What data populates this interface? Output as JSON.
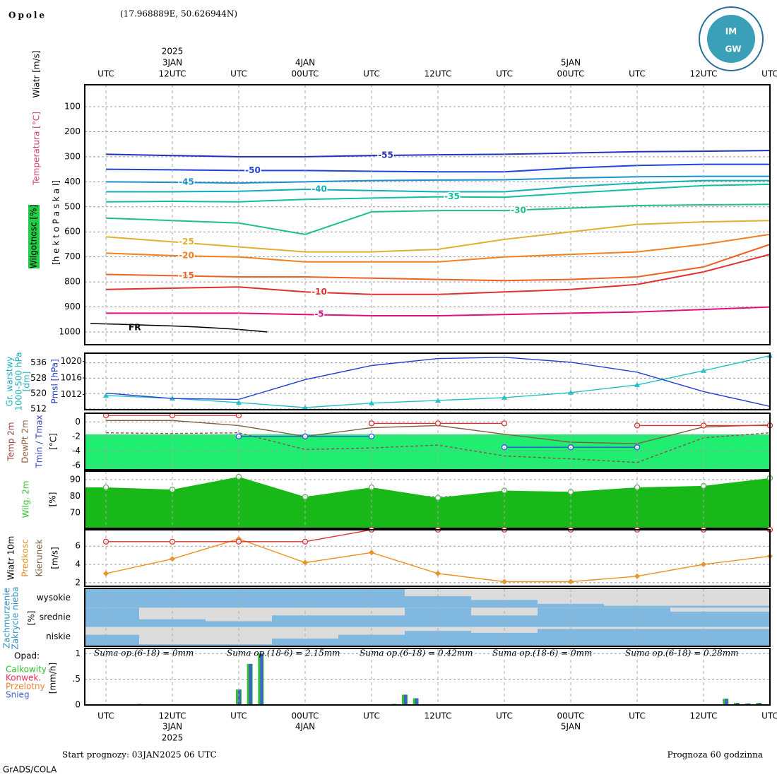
{
  "header": {
    "station": "Opole",
    "coords": "(17.968889E, 50.626944N)",
    "logo": [
      "IM",
      "GW"
    ]
  },
  "time_axis": {
    "categories": [
      "UTC",
      "12UTC",
      "UTC",
      "00UTC",
      "UTC",
      "12UTC",
      "UTC",
      "00UTC",
      "UTC",
      "12UTC",
      "UTC"
    ],
    "dates": [
      null,
      "3JAN",
      null,
      "4JAN",
      null,
      null,
      null,
      "5JAN",
      null,
      null,
      null
    ],
    "year": "2025"
  },
  "footer": {
    "start": "Start prognozy: 03JAN2025 06 UTC",
    "length": "Prognoza 60 godzinna",
    "credit": "GrADS/COLA"
  },
  "chart_data": [
    {
      "type": "contour",
      "ytitle": [
        "Wiatr [m/s]",
        "Temperatura [°C]",
        "Wilgotnosc [%]",
        "[h e k t o P a s k a l]"
      ],
      "ylim": [
        1050.8,
        12.4
      ],
      "yticks": [
        100,
        200,
        300,
        400,
        500,
        600,
        700,
        800,
        900,
        1000
      ],
      "grid": true,
      "annotation": "FR",
      "series": [
        {
          "name": "-55",
          "color": "#2233bb",
          "values": [
            290,
            295,
            300,
            300,
            295,
            292,
            290,
            285,
            280,
            278,
            275
          ]
        },
        {
          "name": "-50",
          "color": "#2244dd",
          "values": [
            350,
            352,
            355,
            355,
            358,
            360,
            360,
            345,
            335,
            330,
            330
          ]
        },
        {
          "name": "-45",
          "color": "#1a90d0",
          "values": [
            400,
            402,
            405,
            400,
            395,
            393,
            392,
            385,
            380,
            378,
            378
          ]
        },
        {
          "name": "-40",
          "color": "#10b0b8",
          "values": [
            440,
            440,
            438,
            430,
            435,
            440,
            440,
            420,
            405,
            395,
            395
          ]
        },
        {
          "name": "-35",
          "color": "#10c0a0",
          "values": [
            480,
            478,
            480,
            470,
            465,
            460,
            462,
            445,
            430,
            415,
            410
          ]
        },
        {
          "name": "-30",
          "color": "#20c080",
          "values": [
            545,
            555,
            565,
            610,
            520,
            515,
            515,
            505,
            495,
            492,
            490
          ]
        },
        {
          "name": "-25",
          "color": "#e0b030",
          "values": [
            620,
            640,
            660,
            680,
            680,
            670,
            630,
            600,
            570,
            560,
            555
          ]
        },
        {
          "name": "-20",
          "color": "#f08020",
          "values": [
            685,
            695,
            700,
            720,
            720,
            720,
            700,
            690,
            680,
            650,
            610
          ]
        },
        {
          "name": "-15",
          "color": "#f06020",
          "values": [
            770,
            775,
            780,
            780,
            785,
            790,
            795,
            790,
            780,
            740,
            650
          ]
        },
        {
          "name": "-10",
          "color": "#e03030",
          "values": [
            830,
            825,
            820,
            840,
            850,
            850,
            840,
            830,
            810,
            760,
            690
          ]
        },
        {
          "name": "-5",
          "color": "#e01080",
          "values": [
            925,
            925,
            925,
            930,
            935,
            935,
            930,
            925,
            920,
            910,
            900
          ]
        }
      ]
    },
    {
      "type": "line",
      "ytitle": [
        "Gr. warstwy",
        "1000-500 hPa",
        "[dm]"
      ],
      "y2title": [
        "Pmsl [hPa]"
      ],
      "ylim": [
        511.6,
        541
      ],
      "yticks": [
        512,
        520,
        528,
        536
      ],
      "y2lim": [
        1008.3,
        1022
      ],
      "y2ticks": [
        1012,
        1016,
        1020
      ],
      "grid": true,
      "series": [
        {
          "color": "#20c0c8",
          "marker": "triangle",
          "values": [
            519,
            517.5,
            515.3,
            512.7,
            515,
            516.4,
            517.9,
            520.5,
            524.5,
            531.9,
            539.7
          ]
        },
        {
          "color": "#2040d0",
          "axis": "y2",
          "values": [
            1012.3,
            1011,
            1010.8,
            1015.6,
            1019,
            1020.7,
            1021,
            1019.8,
            1017.4,
            1012.7,
            1009.1
          ]
        }
      ]
    },
    {
      "type": "line",
      "ytitle": [
        "Temp 2m",
        "DewPt 2m",
        "Tmin / Tmax",
        "[°C]"
      ],
      "ylim": [
        -6.6,
        1.2
      ],
      "yticks": [
        0,
        -2,
        -4,
        -6
      ],
      "grid": true,
      "series": [
        {
          "color": "#806040",
          "values": [
            0.2,
            0.2,
            -0.5,
            -2,
            -0.8,
            -0.5,
            -1.7,
            -2.8,
            -3,
            -0.7,
            -0.4
          ]
        },
        {
          "color": "#905050",
          "dash": true,
          "values": [
            -1.5,
            -1.6,
            -1.5,
            -3.8,
            -3.6,
            -3.2,
            -4.7,
            -5.1,
            -5.6,
            -2.2,
            -1.5
          ]
        },
        {
          "color": "#e03030",
          "marker": "circle",
          "values": [
            0.9,
            0.9,
            0.9,
            null,
            -0.2,
            -0.2,
            -0.2,
            null,
            -0.5,
            -0.5,
            -0.5
          ]
        },
        {
          "color": "#3050e0",
          "marker": "circle",
          "values": [
            null,
            null,
            -2,
            -2,
            -2,
            null,
            -3.5,
            -3.5,
            -3.5,
            null,
            null
          ]
        }
      ]
    },
    {
      "type": "area",
      "ytitle": [
        "Wilg. 2m",
        "[%]"
      ],
      "ylim": [
        60.6,
        95.1
      ],
      "yticks": [
        70,
        80,
        90
      ],
      "grid": true,
      "series": [
        {
          "color": "#18b818",
          "marker": "circle",
          "values": [
            85.3,
            84,
            91.7,
            79.6,
            85.3,
            79.1,
            83.4,
            82.6,
            85.3,
            86.2,
            90.9
          ]
        }
      ]
    },
    {
      "type": "line",
      "ytitle": [
        "Wiatr 10m",
        "Predkosc",
        "Kierunek",
        "[m/s]"
      ],
      "ylim": [
        1.6,
        7.8
      ],
      "yticks": [
        2,
        4,
        6
      ],
      "grid": true,
      "series": [
        {
          "color": "#f09020",
          "marker": "diamond",
          "values": [
            3,
            4.6,
            6.8,
            4.2,
            5.3,
            3,
            2.1,
            2.1,
            2.7,
            4,
            4.9
          ]
        },
        {
          "color": "#e03030",
          "marker": "circle",
          "values": [
            6.5,
            6.5,
            6.5,
            6.5,
            7.8,
            7.8,
            7.8,
            7.8,
            7.8,
            7.8,
            7.8
          ]
        }
      ]
    },
    {
      "type": "cloud",
      "ytitle": [
        "Zachmurzenie",
        "Zakrycie nieba",
        "[%]"
      ],
      "color": "#80b8e0",
      "series": [
        {
          "name": "wysokie",
          "values": [
            100,
            100,
            100,
            100,
            100,
            60,
            40,
            20,
            10,
            10,
            10
          ]
        },
        {
          "name": "srednie",
          "values": [
            100,
            40,
            30,
            60,
            60,
            100,
            60,
            100,
            100,
            80,
            80
          ]
        },
        {
          "name": "niskie",
          "values": [
            60,
            10,
            10,
            40,
            60,
            80,
            70,
            90,
            90,
            90,
            90
          ]
        }
      ]
    },
    {
      "type": "bar",
      "title": "Opad:",
      "ytitle": [
        "[mm/h]"
      ],
      "ylim": [
        0,
        1.1
      ],
      "yticks": [
        0,
        {
          "value": 0.5,
          "label": ".5"
        },
        1
      ],
      "grid": true,
      "sums": [
        "Suma op.(6-18) = 0mm",
        "Suma op.(18-6) = 2.15mm",
        "Suma op.(6-18) = 0.42mm",
        "Suma op.(18-6) = 0mm",
        "Suma op.(6-18) = 0.28mm"
      ],
      "series": [
        {
          "name": "Calkowity",
          "color": "#30c030",
          "values": [
            0,
            0,
            0,
            0.02,
            0,
            0,
            0,
            0,
            0,
            0,
            0,
            0,
            0.3,
            0.8,
            1,
            0,
            0,
            0,
            0,
            0,
            0,
            0,
            0,
            0,
            0,
            0,
            0.02,
            0.2,
            0.13,
            0,
            0,
            0,
            0,
            0,
            0,
            0,
            0,
            0,
            0,
            0,
            0,
            0,
            0,
            0,
            0,
            0,
            0,
            0,
            0,
            0,
            0,
            0,
            0,
            0,
            0,
            0,
            0.12,
            0.04,
            0.03,
            0.04,
            0
          ]
        },
        {
          "name": "Konwek.",
          "color": "#e03060",
          "values": [
            0,
            0,
            0,
            0,
            0,
            0,
            0,
            0,
            0,
            0,
            0,
            0,
            0,
            0,
            0,
            0,
            0,
            0,
            0,
            0,
            0,
            0,
            0,
            0,
            0,
            0,
            0,
            0,
            0,
            0,
            0,
            0,
            0,
            0,
            0,
            0,
            0,
            0,
            0,
            0,
            0,
            0,
            0,
            0,
            0,
            0,
            0,
            0,
            0,
            0,
            0,
            0,
            0,
            0,
            0,
            0,
            0,
            0,
            0,
            0,
            0
          ]
        },
        {
          "name": "Przelotny",
          "color": "#f08030",
          "values": [
            0,
            0,
            0,
            0,
            0,
            0,
            0,
            0,
            0,
            0,
            0,
            0,
            0,
            0,
            0,
            0,
            0,
            0,
            0,
            0,
            0,
            0,
            0,
            0,
            0,
            0,
            0,
            0,
            0,
            0,
            0,
            0,
            0,
            0,
            0,
            0,
            0,
            0,
            0,
            0,
            0,
            0,
            0,
            0,
            0,
            0,
            0,
            0,
            0,
            0,
            0,
            0,
            0,
            0,
            0,
            0,
            0,
            0,
            0,
            0,
            0
          ]
        },
        {
          "name": "Snieg",
          "color": "#4060d0",
          "values": [
            0,
            0,
            0,
            0.02,
            0,
            0,
            0,
            0,
            0,
            0,
            0,
            0,
            0.3,
            0.8,
            1,
            0,
            0,
            0,
            0,
            0,
            0,
            0,
            0,
            0,
            0,
            0,
            0.02,
            0.2,
            0.13,
            0,
            0,
            0,
            0,
            0,
            0,
            0,
            0,
            0,
            0,
            0,
            0,
            0,
            0,
            0,
            0,
            0,
            0,
            0,
            0,
            0,
            0,
            0,
            0,
            0,
            0,
            0,
            0.12,
            0.04,
            0.03,
            0.04,
            0
          ]
        }
      ]
    }
  ]
}
